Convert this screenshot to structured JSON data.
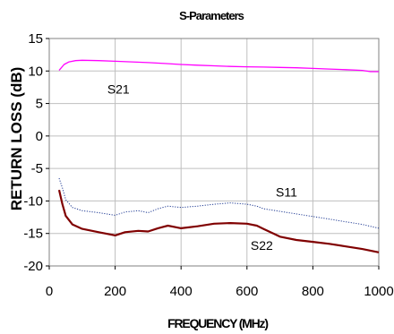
{
  "chart_data": {
    "type": "line",
    "title": "S-Parameters",
    "xlabel": "FREQUENCY (MHz)",
    "ylabel": "RETURN LOSS (dB)",
    "xlim": [
      0,
      1000
    ],
    "ylim": [
      -20,
      15
    ],
    "xticks": [
      0,
      200,
      400,
      600,
      800,
      1000
    ],
    "yticks": [
      15,
      10,
      5,
      0,
      -5,
      -10,
      -15,
      -20
    ],
    "grid": true,
    "legend": "none",
    "series": [
      {
        "name": "S21",
        "color": "#ff00ff",
        "style": "solid",
        "x": [
          30,
          45,
          60,
          80,
          100,
          150,
          200,
          250,
          300,
          350,
          400,
          450,
          500,
          550,
          600,
          650,
          700,
          750,
          800,
          850,
          900,
          950,
          975,
          1000
        ],
        "y": [
          10.1,
          11.0,
          11.4,
          11.6,
          11.65,
          11.6,
          11.5,
          11.4,
          11.3,
          11.15,
          11.0,
          10.9,
          10.8,
          10.7,
          10.65,
          10.6,
          10.55,
          10.5,
          10.4,
          10.3,
          10.2,
          10.1,
          9.9,
          9.9
        ]
      },
      {
        "name": "S11",
        "color": "#1f3a93",
        "style": "dotted",
        "x": [
          30,
          40,
          50,
          70,
          100,
          150,
          200,
          230,
          270,
          300,
          330,
          360,
          400,
          450,
          500,
          550,
          600,
          630,
          650,
          700,
          750,
          800,
          850,
          900,
          950,
          1000
        ],
        "y": [
          -6.5,
          -8.0,
          -9.8,
          -11.0,
          -11.5,
          -11.8,
          -12.2,
          -11.7,
          -11.5,
          -11.8,
          -11.2,
          -10.8,
          -11.0,
          -10.8,
          -10.5,
          -10.3,
          -10.5,
          -10.8,
          -11.2,
          -11.6,
          -12.0,
          -12.4,
          -12.8,
          -13.2,
          -13.6,
          -14.2
        ]
      },
      {
        "name": "S22",
        "color": "#800000",
        "style": "solid",
        "x": [
          30,
          40,
          50,
          70,
          100,
          150,
          200,
          230,
          270,
          300,
          330,
          360,
          400,
          450,
          500,
          550,
          600,
          630,
          650,
          680,
          700,
          750,
          800,
          850,
          900,
          950,
          1000
        ],
        "y": [
          -8.3,
          -10.5,
          -12.3,
          -13.6,
          -14.3,
          -14.8,
          -15.3,
          -14.8,
          -14.6,
          -14.7,
          -14.2,
          -13.8,
          -14.2,
          -13.9,
          -13.5,
          -13.4,
          -13.5,
          -13.8,
          -14.3,
          -15.0,
          -15.5,
          -16.0,
          -16.3,
          -16.6,
          -17.0,
          -17.4,
          -17.9
        ]
      }
    ],
    "annotations": [
      {
        "text": "S21",
        "x": 210,
        "y": 6.5
      },
      {
        "text": "S11",
        "x": 720,
        "y": -9.3
      },
      {
        "text": "S22",
        "x": 645,
        "y": -17.5
      }
    ]
  }
}
